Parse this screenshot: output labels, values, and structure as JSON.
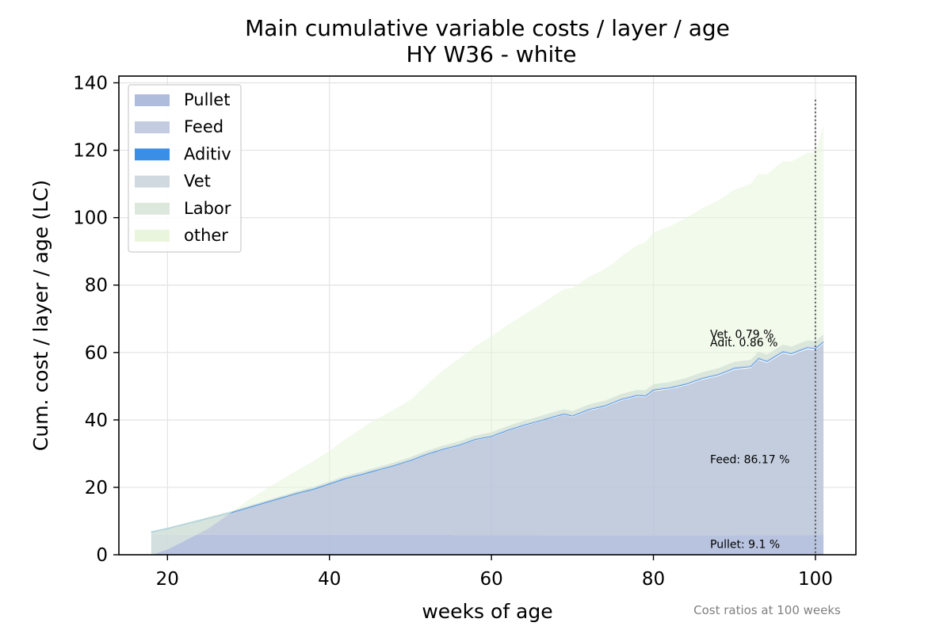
{
  "chart_data": {
    "type": "area",
    "stacked": true,
    "title": "Main cumulative variable costs / layer / age",
    "subtitle": "HY W36 - white",
    "xlabel": "weeks of age",
    "ylabel": "Cum. cost / layer / age (LC)",
    "xlim": [
      14,
      105
    ],
    "ylim": [
      0,
      142
    ],
    "xticks": [
      20,
      40,
      60,
      80,
      100
    ],
    "yticks": [
      0,
      20,
      40,
      60,
      80,
      100,
      120,
      140
    ],
    "grid": true,
    "legend_position": "top-left",
    "x_start": 18,
    "x_end": 101,
    "vline_x": 100,
    "vline_top": 135,
    "series": [
      {
        "name": "Pullet",
        "color": "#b0bcdc",
        "opacity": 0.9,
        "points": [
          [
            18,
            6.0
          ],
          [
            20,
            5.95
          ],
          [
            40,
            5.9
          ],
          [
            60,
            5.85
          ],
          [
            80,
            5.8
          ],
          [
            101,
            5.75
          ]
        ]
      },
      {
        "name": "Feed",
        "color": "#b8c4d8",
        "opacity": 0.85,
        "points": [
          [
            18,
            0.7
          ],
          [
            20,
            1.8
          ],
          [
            22,
            3.0
          ],
          [
            24,
            4.2
          ],
          [
            26,
            5.4
          ],
          [
            28,
            6.6
          ],
          [
            30,
            8.0
          ],
          [
            32,
            9.4
          ],
          [
            34,
            10.8
          ],
          [
            36,
            12.2
          ],
          [
            38,
            13.4
          ],
          [
            40,
            15.0
          ],
          [
            42,
            16.6
          ],
          [
            44,
            17.8
          ],
          [
            46,
            19.1
          ],
          [
            48,
            20.4
          ],
          [
            50,
            21.9
          ],
          [
            52,
            23.7
          ],
          [
            54,
            25.2
          ],
          [
            56,
            26.4
          ],
          [
            58,
            28.1
          ],
          [
            60,
            29.0
          ],
          [
            62,
            30.8
          ],
          [
            64,
            32.3
          ],
          [
            66,
            33.6
          ],
          [
            68,
            35.0
          ],
          [
            69,
            35.6
          ],
          [
            70,
            35.0
          ],
          [
            72,
            36.9
          ],
          [
            74,
            38.0
          ],
          [
            76,
            39.9
          ],
          [
            78,
            41.1
          ],
          [
            79,
            40.9
          ],
          [
            80,
            42.7
          ],
          [
            82,
            43.3
          ],
          [
            84,
            44.4
          ],
          [
            86,
            46.1
          ],
          [
            88,
            47.2
          ],
          [
            90,
            49.1
          ],
          [
            92,
            49.6
          ],
          [
            93,
            52.0
          ],
          [
            94,
            51.1
          ],
          [
            96,
            54.0
          ],
          [
            97,
            53.4
          ],
          [
            99,
            55.2
          ],
          [
            100,
            54.9
          ],
          [
            101,
            56.9
          ]
        ]
      },
      {
        "name": "Aditiv",
        "color": "#3a8ee6",
        "opacity": 1.0,
        "as_line": true,
        "points": [
          [
            18,
            0.06
          ],
          [
            101,
            0.54
          ]
        ]
      },
      {
        "name": "Vet",
        "color": "#cdd6de",
        "opacity": 0.9,
        "points": [
          [
            18,
            0.05
          ],
          [
            60,
            0.3
          ],
          [
            101,
            0.5
          ]
        ]
      },
      {
        "name": "Labor",
        "color": "#d8e4d8",
        "opacity": 0.9,
        "points": [
          [
            18,
            0.1
          ],
          [
            60,
            0.9
          ],
          [
            101,
            1.7
          ]
        ]
      },
      {
        "name": "other",
        "color": "#e8f5dc",
        "opacity": 0.55,
        "points": [
          [
            18,
            -7.0
          ],
          [
            20,
            -6.5
          ],
          [
            25,
            -3.5
          ],
          [
            30,
            1.8
          ],
          [
            35,
            5.5
          ],
          [
            40,
            9.0
          ],
          [
            45,
            13.8
          ],
          [
            50,
            17.0
          ],
          [
            55,
            23.5
          ],
          [
            60,
            28.5
          ],
          [
            65,
            32.2
          ],
          [
            70,
            36.5
          ],
          [
            75,
            39.7
          ],
          [
            80,
            45.0
          ],
          [
            85,
            48.0
          ],
          [
            90,
            51.0
          ],
          [
            95,
            54.0
          ],
          [
            100,
            56.0
          ],
          [
            101,
            62.0
          ]
        ]
      }
    ],
    "legend": [
      {
        "name": "Pullet",
        "color": "#b0bcdc"
      },
      {
        "name": "Feed",
        "color": "#c2cbdf"
      },
      {
        "name": "Aditiv",
        "color": "#3a8ee6"
      },
      {
        "name": "Vet",
        "color": "#d0d8e0"
      },
      {
        "name": "Labor",
        "color": "#dde8dd"
      },
      {
        "name": "other",
        "color": "#eaf5dd"
      }
    ],
    "annotations": [
      {
        "text": "Vet. 0.79 %",
        "x": 87,
        "y": 65.5
      },
      {
        "text": "Adit. 0.86 %",
        "x": 87,
        "y": 63.0
      },
      {
        "text": "Feed: 86.17 %",
        "x": 87,
        "y": 28.3
      },
      {
        "text": "Pullet: 9.1 %",
        "x": 87,
        "y": 3.2
      }
    ],
    "footnote": "Cost ratios at 100 weeks"
  }
}
